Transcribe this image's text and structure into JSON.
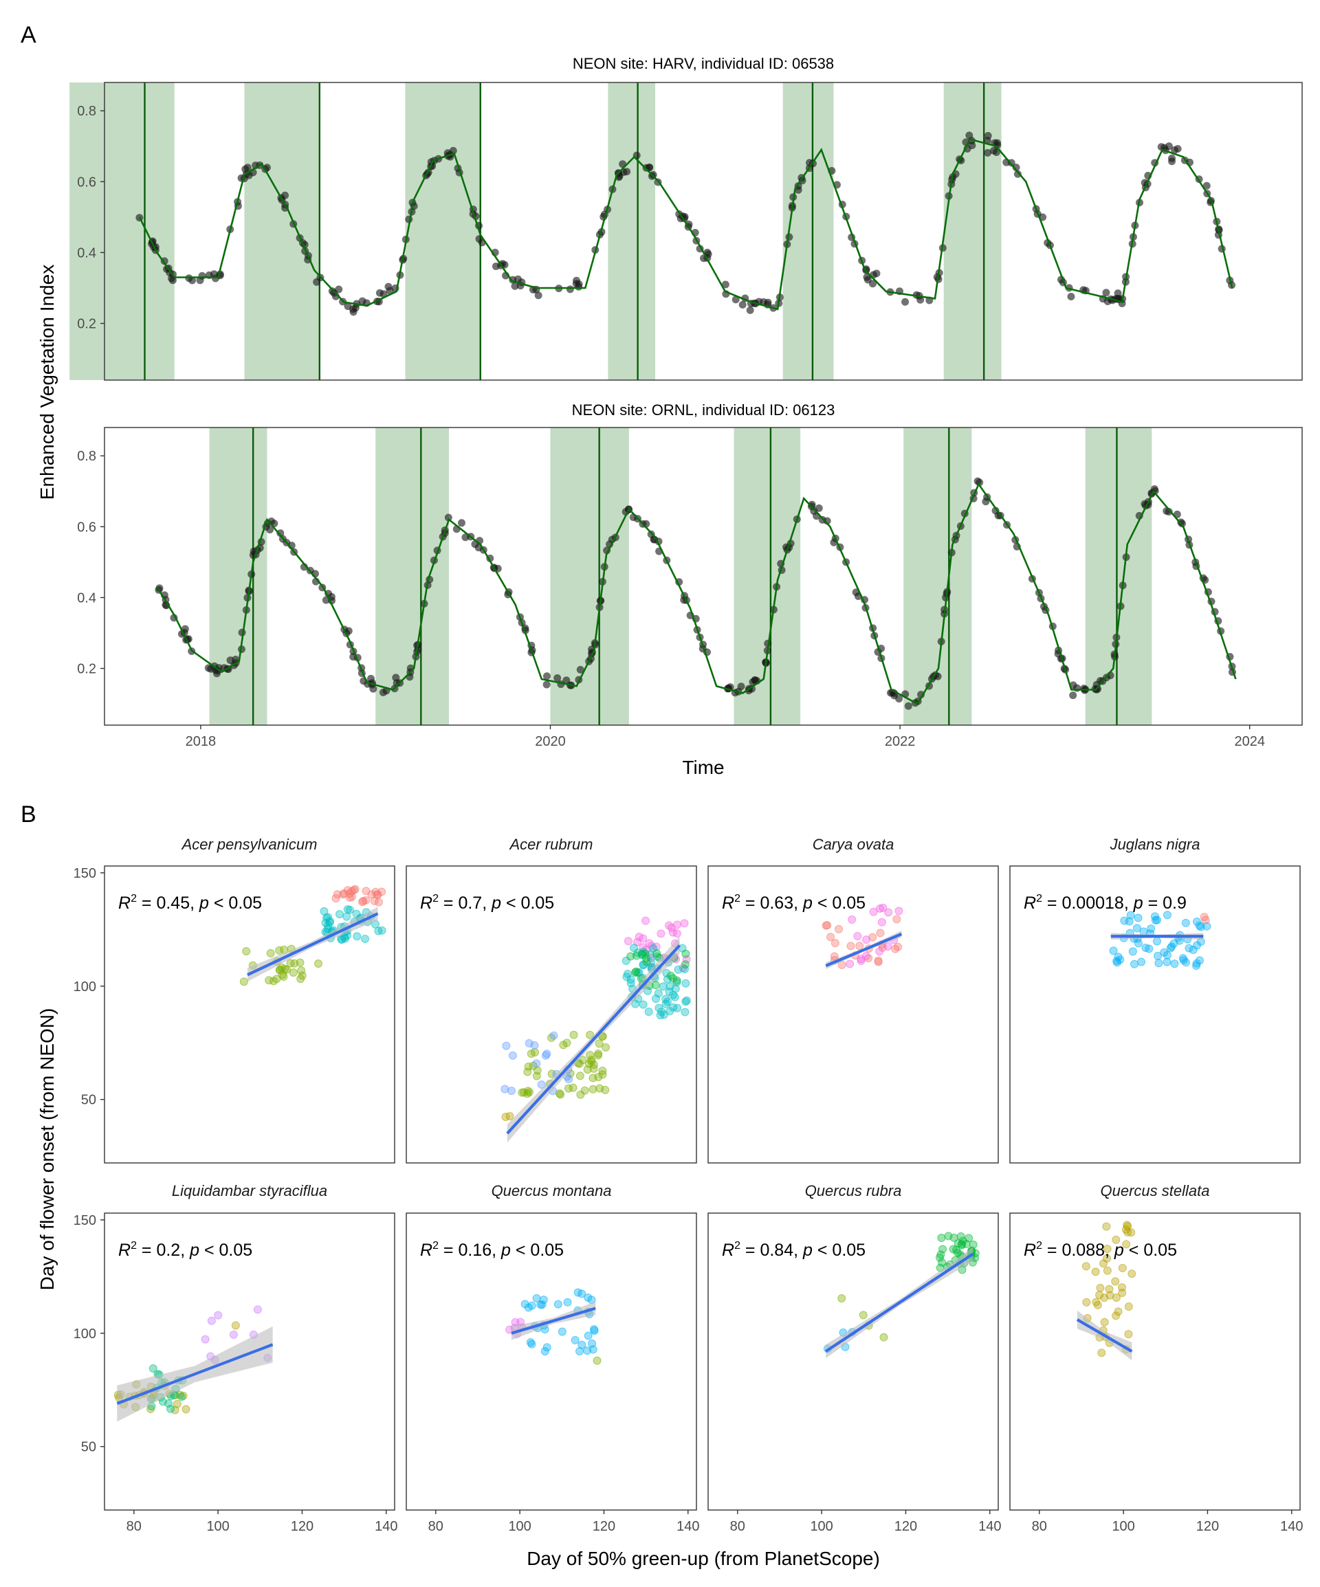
{
  "panel_labels": {
    "a": "A",
    "b": "B"
  },
  "panel_a": {
    "ylabel": "Enhanced Vegetation Index",
    "xlabel": "Time",
    "x_ticks": [
      "2018",
      "2020",
      "2022",
      "2024"
    ],
    "x_tick_values": [
      2018,
      2020,
      2022,
      2024
    ],
    "y_ticks": [
      "0.2",
      "0.4",
      "0.6",
      "0.8"
    ],
    "y_tick_values": [
      0.2,
      0.4,
      0.6,
      0.8
    ]
  },
  "panel_b": {
    "ylabel": "Day of flower onset (from NEON)",
    "xlabel": "Day of 50% green-up (from PlanetScope)",
    "x_ticks": [
      "80",
      "100",
      "120",
      "140"
    ],
    "x_tick_values": [
      80,
      100,
      120,
      140
    ],
    "y_ticks": [
      "50",
      "100",
      "150"
    ],
    "y_tick_values": [
      50,
      100,
      150
    ]
  },
  "colors": {
    "season_band": "#c4dcc4",
    "onset_line": "#0a5c0a",
    "fit_line_a": "#0a6e0a",
    "obs_point": "#1a1a1a",
    "regression": "#3a6ee6",
    "ci": "#bdbdbd"
  },
  "chart_data": [
    {
      "type": "scatter",
      "title": "NEON site: HARV, individual ID: 06538",
      "xlim": [
        2017.45,
        2024.3
      ],
      "ylim": [
        0.04,
        0.88
      ],
      "growing_seasons": [
        [
          2017.25,
          2017.85
        ],
        [
          2018.25,
          2018.68
        ],
        [
          2019.17,
          2019.6
        ],
        [
          2020.33,
          2020.6
        ],
        [
          2021.33,
          2021.62
        ],
        [
          2022.25,
          2022.58
        ]
      ],
      "onset_lines": [
        2017.68,
        2018.68,
        2019.6,
        2020.5,
        2021.5,
        2022.48
      ],
      "fitted_curve": {
        "x": [
          2017.65,
          2017.75,
          2017.85,
          2018.1,
          2018.25,
          2018.35,
          2018.5,
          2018.65,
          2018.82,
          2018.95,
          2019.12,
          2019.22,
          2019.33,
          2019.45,
          2019.6,
          2019.78,
          2019.92,
          2020.2,
          2020.38,
          2020.48,
          2020.62,
          2020.82,
          2021.0,
          2021.15,
          2021.3,
          2021.4,
          2021.55,
          2021.8,
          2021.92,
          2022.2,
          2022.3,
          2022.4,
          2022.55,
          2022.72,
          2022.95,
          2023.2,
          2023.27,
          2023.37,
          2023.5,
          2023.62,
          2023.78,
          2023.9
        ],
        "y": [
          0.5,
          0.4,
          0.33,
          0.33,
          0.62,
          0.65,
          0.52,
          0.35,
          0.26,
          0.25,
          0.29,
          0.55,
          0.66,
          0.68,
          0.45,
          0.32,
          0.3,
          0.3,
          0.62,
          0.67,
          0.6,
          0.45,
          0.29,
          0.26,
          0.24,
          0.58,
          0.69,
          0.35,
          0.29,
          0.27,
          0.62,
          0.72,
          0.7,
          0.6,
          0.3,
          0.27,
          0.26,
          0.55,
          0.69,
          0.67,
          0.55,
          0.3
        ]
      },
      "points_note": "Observed EVI points scatter around the fitted curve"
    },
    {
      "type": "scatter",
      "title": "NEON site: ORNL, individual ID: 06123",
      "xlim": [
        2017.45,
        2024.3
      ],
      "ylim": [
        0.04,
        0.88
      ],
      "growing_seasons": [
        [
          2018.05,
          2018.38
        ],
        [
          2019.0,
          2019.42
        ],
        [
          2020.0,
          2020.45
        ],
        [
          2021.05,
          2021.43
        ],
        [
          2022.02,
          2022.41
        ],
        [
          2023.06,
          2023.44
        ]
      ],
      "onset_lines": [
        2018.3,
        2019.26,
        2020.28,
        2021.26,
        2022.28,
        2023.24
      ],
      "fitted_curve": {
        "x": [
          2017.75,
          2017.85,
          2017.95,
          2018.12,
          2018.22,
          2018.3,
          2018.38,
          2018.5,
          2018.7,
          2018.85,
          2018.95,
          2019.1,
          2019.22,
          2019.3,
          2019.42,
          2019.6,
          2019.8,
          2019.95,
          2020.15,
          2020.25,
          2020.32,
          2020.45,
          2020.6,
          2020.8,
          2020.95,
          2021.1,
          2021.22,
          2021.3,
          2021.45,
          2021.6,
          2021.8,
          2021.95,
          2022.1,
          2022.22,
          2022.3,
          2022.45,
          2022.65,
          2022.85,
          2022.98,
          2023.12,
          2023.22,
          2023.3,
          2023.45,
          2023.62,
          2023.78,
          2023.92
        ],
        "y": [
          0.43,
          0.35,
          0.25,
          0.19,
          0.22,
          0.5,
          0.62,
          0.55,
          0.43,
          0.28,
          0.16,
          0.14,
          0.2,
          0.45,
          0.62,
          0.55,
          0.38,
          0.17,
          0.15,
          0.25,
          0.52,
          0.65,
          0.57,
          0.37,
          0.15,
          0.13,
          0.17,
          0.45,
          0.68,
          0.6,
          0.38,
          0.14,
          0.1,
          0.2,
          0.55,
          0.72,
          0.58,
          0.35,
          0.14,
          0.14,
          0.2,
          0.55,
          0.7,
          0.6,
          0.38,
          0.17
        ]
      },
      "points_note": "Observed EVI points scatter around the fitted curve"
    },
    {
      "type": "scatter",
      "title": "Acer pensylvanicum",
      "annotation": {
        "r2": "0.45",
        "p": "0.05",
        "op": "<"
      },
      "xlim": [
        73,
        142
      ],
      "ylim": [
        22,
        153
      ],
      "fit": {
        "x0": 107,
        "y0": 105,
        "x1": 138,
        "y1": 132,
        "ci": 3
      },
      "groups": [
        {
          "color": "#f8766d",
          "x": [
            128,
            139
          ],
          "y": [
            137,
            143
          ],
          "n": 22
        },
        {
          "color": "#7cae00",
          "x": [
            106,
            124
          ],
          "y": [
            101,
            117
          ],
          "n": 26
        },
        {
          "color": "#00bfc4",
          "x": [
            125,
            139
          ],
          "y": [
            120,
            134
          ],
          "n": 40
        }
      ]
    },
    {
      "type": "scatter",
      "title": "Acer rubrum",
      "annotation": {
        "r2": "0.7",
        "p": "0.05",
        "op": "<"
      },
      "xlim": [
        73,
        142
      ],
      "ylim": [
        22,
        153
      ],
      "fit": {
        "x0": 97,
        "y0": 35,
        "x1": 138,
        "y1": 118,
        "ci": 4
      },
      "groups": [
        {
          "color": "#f564e3",
          "x": [
            125,
            140
          ],
          "y": [
            108,
            130
          ],
          "n": 26
        },
        {
          "color": "#7cae00",
          "x": [
            100,
            121
          ],
          "y": [
            52,
            79
          ],
          "n": 50
        },
        {
          "color": "#00bfc4",
          "x": [
            125,
            140
          ],
          "y": [
            87,
            117
          ],
          "n": 60
        },
        {
          "color": "#619cff",
          "x": [
            96,
            112
          ],
          "y": [
            53,
            79
          ],
          "n": 16
        },
        {
          "color": "#00ba38",
          "x": [
            125,
            140
          ],
          "y": [
            100,
            115
          ],
          "n": 20
        },
        {
          "color": "#b79f00",
          "x": [
            96,
            98
          ],
          "y": [
            42,
            43
          ],
          "n": 2
        }
      ]
    },
    {
      "type": "scatter",
      "title": "Carya ovata",
      "annotation": {
        "r2": "0.63",
        "p": "0.05",
        "op": "<"
      },
      "xlim": [
        73,
        142
      ],
      "ylim": [
        22,
        153
      ],
      "fit": {
        "x0": 101,
        "y0": 109,
        "x1": 119,
        "y1": 123,
        "ci": 1.5
      },
      "groups": [
        {
          "color": "#f8766d",
          "x": [
            101,
            119
          ],
          "y": [
            109,
            130
          ],
          "n": 22
        },
        {
          "color": "#f564e3",
          "x": [
            102,
            120
          ],
          "y": [
            109,
            137
          ],
          "n": 16
        }
      ]
    },
    {
      "type": "scatter",
      "title": "Juglans nigra",
      "annotation": {
        "r2": "0.00018",
        "p": "0.9",
        "op": "="
      },
      "xlim": [
        73,
        142
      ],
      "ylim": [
        22,
        153
      ],
      "fit": {
        "x0": 97,
        "y0": 122,
        "x1": 119,
        "y1": 122,
        "ci": 1.5
      },
      "groups": [
        {
          "color": "#00b0f6",
          "x": [
            97,
            120
          ],
          "y": [
            109,
            132
          ],
          "n": 56
        },
        {
          "color": "#f8766d",
          "x": [
            118,
            120
          ],
          "y": [
            129,
            131
          ],
          "n": 2
        }
      ]
    },
    {
      "type": "scatter",
      "title": "Liquidambar styraciflua",
      "annotation": {
        "r2": "0.2",
        "p": "0.05",
        "op": "<"
      },
      "xlim": [
        73,
        142
      ],
      "ylim": [
        22,
        153
      ],
      "fit": {
        "x0": 76,
        "y0": 69,
        "x1": 113,
        "y1": 95,
        "ci": 8
      },
      "groups": [
        {
          "color": "#a3a500",
          "x": [
            76,
            93
          ],
          "y": [
            66,
            78
          ],
          "n": 24
        },
        {
          "color": "#00bf7d",
          "x": [
            84,
            92
          ],
          "y": [
            64,
            85
          ],
          "n": 18
        },
        {
          "color": "#c77cff",
          "x": [
            96,
            113
          ],
          "y": [
            88,
            112
          ],
          "n": 9
        },
        {
          "color": "#b79f00",
          "x": [
            103,
            105
          ],
          "y": [
            103,
            105
          ],
          "n": 1
        }
      ]
    },
    {
      "type": "scatter",
      "title": "Quercus montana",
      "annotation": {
        "r2": "0.16",
        "p": "0.05",
        "op": "<"
      },
      "xlim": [
        73,
        142
      ],
      "ylim": [
        22,
        153
      ],
      "fit": {
        "x0": 98,
        "y0": 100,
        "x1": 118,
        "y1": 111,
        "ci": 3
      },
      "groups": [
        {
          "color": "#00b0f6",
          "x": [
            101,
            118
          ],
          "y": [
            92,
            118
          ],
          "n": 34
        },
        {
          "color": "#e76bf3",
          "x": [
            97,
            103
          ],
          "y": [
            97,
            105
          ],
          "n": 6
        },
        {
          "color": "#7cae00",
          "x": [
            117,
            119
          ],
          "y": [
            87,
            89
          ],
          "n": 1
        }
      ]
    },
    {
      "type": "scatter",
      "title": "Quercus rubra",
      "annotation": {
        "r2": "0.84",
        "p": "0.05",
        "op": "<"
      },
      "xlim": [
        73,
        142
      ],
      "ylim": [
        22,
        153
      ],
      "fit": {
        "x0": 101,
        "y0": 92,
        "x1": 136,
        "y1": 135,
        "ci": 3
      },
      "groups": [
        {
          "color": "#00ba38",
          "x": [
            128,
            137
          ],
          "y": [
            128,
            144
          ],
          "n": 36
        },
        {
          "color": "#7cae00",
          "x": [
            104,
            115
          ],
          "y": [
            95,
            119
          ],
          "n": 4
        },
        {
          "color": "#00b0f6",
          "x": [
            101,
            108
          ],
          "y": [
            91,
            103
          ],
          "n": 4
        }
      ]
    },
    {
      "type": "scatter",
      "title": "Quercus stellata",
      "annotation": {
        "r2": "0.088",
        "p": "0.05",
        "op": "<"
      },
      "xlim": [
        73,
        142
      ],
      "ylim": [
        22,
        153
      ],
      "fit": {
        "x0": 89,
        "y0": 106,
        "x1": 102,
        "y1": 92,
        "ci": 4
      },
      "groups": [
        {
          "color": "#b79f00",
          "x": [
            91,
            102
          ],
          "y": [
            90,
            148
          ],
          "n": 40
        }
      ]
    }
  ]
}
